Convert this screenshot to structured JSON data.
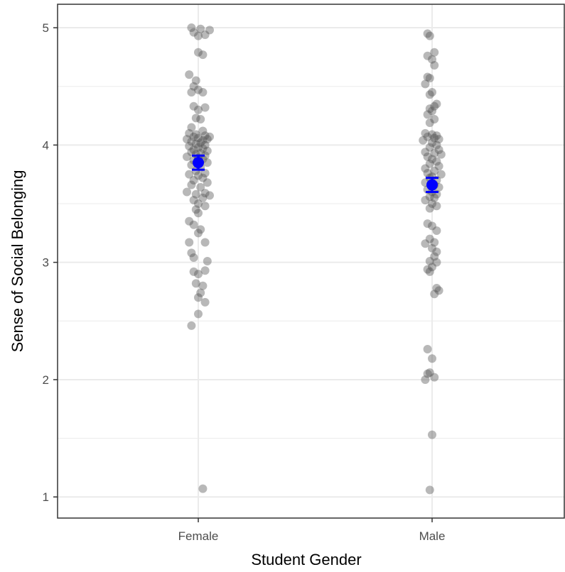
{
  "chart_data": {
    "type": "scatter",
    "title": "",
    "xlabel": "Student Gender",
    "ylabel": "Sense of Social Belonging",
    "categories": [
      "Female",
      "Male"
    ],
    "ylim": [
      0.82,
      5.2
    ],
    "yticks": [
      1,
      2,
      3,
      4,
      5
    ],
    "grid": true,
    "legend": "none",
    "colors": {
      "points": "#4d4d4d",
      "summary": "#0000ff",
      "grid": "#ebebeb",
      "panel_border": "#333333"
    },
    "points": {
      "Female": [
        {
          "jitter": -0.03,
          "y": 5.0
        },
        {
          "jitter": 0.01,
          "y": 4.99
        },
        {
          "jitter": 0.05,
          "y": 4.98
        },
        {
          "jitter": -0.02,
          "y": 4.96
        },
        {
          "jitter": 0.03,
          "y": 4.94
        },
        {
          "jitter": 0.0,
          "y": 4.93
        },
        {
          "jitter": 0.0,
          "y": 4.79
        },
        {
          "jitter": 0.02,
          "y": 4.77
        },
        {
          "jitter": -0.04,
          "y": 4.6
        },
        {
          "jitter": -0.01,
          "y": 4.55
        },
        {
          "jitter": -0.02,
          "y": 4.5
        },
        {
          "jitter": 0.0,
          "y": 4.47
        },
        {
          "jitter": -0.03,
          "y": 4.45
        },
        {
          "jitter": 0.02,
          "y": 4.45
        },
        {
          "jitter": -0.02,
          "y": 4.33
        },
        {
          "jitter": 0.03,
          "y": 4.32
        },
        {
          "jitter": 0.0,
          "y": 4.3
        },
        {
          "jitter": -0.01,
          "y": 4.23
        },
        {
          "jitter": 0.01,
          "y": 4.22
        },
        {
          "jitter": -0.03,
          "y": 4.15
        },
        {
          "jitter": 0.02,
          "y": 4.12
        },
        {
          "jitter": -0.04,
          "y": 4.1
        },
        {
          "jitter": -0.01,
          "y": 4.09
        },
        {
          "jitter": 0.03,
          "y": 4.08
        },
        {
          "jitter": 0.05,
          "y": 4.07
        },
        {
          "jitter": -0.02,
          "y": 4.07
        },
        {
          "jitter": 0.0,
          "y": 4.06
        },
        {
          "jitter": 0.04,
          "y": 4.05
        },
        {
          "jitter": -0.05,
          "y": 4.05
        },
        {
          "jitter": 0.02,
          "y": 4.04
        },
        {
          "jitter": -0.03,
          "y": 4.03
        },
        {
          "jitter": 0.01,
          "y": 4.02
        },
        {
          "jitter": -0.01,
          "y": 4.01
        },
        {
          "jitter": 0.03,
          "y": 4.0
        },
        {
          "jitter": -0.04,
          "y": 3.99
        },
        {
          "jitter": 0.0,
          "y": 3.98
        },
        {
          "jitter": 0.02,
          "y": 3.97
        },
        {
          "jitter": -0.02,
          "y": 3.96
        },
        {
          "jitter": 0.04,
          "y": 3.95
        },
        {
          "jitter": -0.03,
          "y": 3.94
        },
        {
          "jitter": 0.01,
          "y": 3.93
        },
        {
          "jitter": -0.01,
          "y": 3.92
        },
        {
          "jitter": 0.03,
          "y": 3.91
        },
        {
          "jitter": -0.05,
          "y": 3.9
        },
        {
          "jitter": 0.0,
          "y": 3.89
        },
        {
          "jitter": 0.02,
          "y": 3.88
        },
        {
          "jitter": -0.02,
          "y": 3.87
        },
        {
          "jitter": 0.04,
          "y": 3.85
        },
        {
          "jitter": -0.03,
          "y": 3.83
        },
        {
          "jitter": 0.01,
          "y": 3.81
        },
        {
          "jitter": -0.01,
          "y": 3.78
        },
        {
          "jitter": 0.03,
          "y": 3.76
        },
        {
          "jitter": -0.04,
          "y": 3.75
        },
        {
          "jitter": 0.0,
          "y": 3.74
        },
        {
          "jitter": 0.02,
          "y": 3.72
        },
        {
          "jitter": -0.02,
          "y": 3.7
        },
        {
          "jitter": 0.04,
          "y": 3.68
        },
        {
          "jitter": -0.03,
          "y": 3.66
        },
        {
          "jitter": 0.01,
          "y": 3.64
        },
        {
          "jitter": -0.05,
          "y": 3.6
        },
        {
          "jitter": 0.03,
          "y": 3.59
        },
        {
          "jitter": -0.01,
          "y": 3.58
        },
        {
          "jitter": 0.05,
          "y": 3.57
        },
        {
          "jitter": 0.02,
          "y": 3.55
        },
        {
          "jitter": -0.02,
          "y": 3.53
        },
        {
          "jitter": 0.0,
          "y": 3.5
        },
        {
          "jitter": 0.03,
          "y": 3.48
        },
        {
          "jitter": -0.01,
          "y": 3.45
        },
        {
          "jitter": 0.0,
          "y": 3.42
        },
        {
          "jitter": -0.04,
          "y": 3.35
        },
        {
          "jitter": -0.02,
          "y": 3.32
        },
        {
          "jitter": 0.01,
          "y": 3.28
        },
        {
          "jitter": 0.0,
          "y": 3.25
        },
        {
          "jitter": -0.04,
          "y": 3.17
        },
        {
          "jitter": 0.03,
          "y": 3.17
        },
        {
          "jitter": -0.03,
          "y": 3.08
        },
        {
          "jitter": -0.02,
          "y": 3.04
        },
        {
          "jitter": 0.04,
          "y": 3.01
        },
        {
          "jitter": 0.03,
          "y": 2.93
        },
        {
          "jitter": -0.02,
          "y": 2.92
        },
        {
          "jitter": 0.0,
          "y": 2.9
        },
        {
          "jitter": -0.01,
          "y": 2.82
        },
        {
          "jitter": 0.02,
          "y": 2.8
        },
        {
          "jitter": 0.01,
          "y": 2.74
        },
        {
          "jitter": 0.0,
          "y": 2.7
        },
        {
          "jitter": 0.03,
          "y": 2.66
        },
        {
          "jitter": 0.0,
          "y": 2.56
        },
        {
          "jitter": -0.03,
          "y": 2.46
        },
        {
          "jitter": 0.02,
          "y": 1.07
        }
      ],
      "Male": [
        {
          "jitter": -0.02,
          "y": 4.95
        },
        {
          "jitter": -0.01,
          "y": 4.93
        },
        {
          "jitter": 0.01,
          "y": 4.79
        },
        {
          "jitter": -0.02,
          "y": 4.76
        },
        {
          "jitter": 0.0,
          "y": 4.73
        },
        {
          "jitter": 0.01,
          "y": 4.68
        },
        {
          "jitter": -0.02,
          "y": 4.58
        },
        {
          "jitter": -0.01,
          "y": 4.57
        },
        {
          "jitter": -0.03,
          "y": 4.52
        },
        {
          "jitter": 0.0,
          "y": 4.45
        },
        {
          "jitter": -0.01,
          "y": 4.43
        },
        {
          "jitter": 0.02,
          "y": 4.35
        },
        {
          "jitter": 0.01,
          "y": 4.33
        },
        {
          "jitter": -0.01,
          "y": 4.31
        },
        {
          "jitter": 0.0,
          "y": 4.29
        },
        {
          "jitter": -0.02,
          "y": 4.26
        },
        {
          "jitter": 0.01,
          "y": 4.22
        },
        {
          "jitter": -0.01,
          "y": 4.19
        },
        {
          "jitter": -0.03,
          "y": 4.1
        },
        {
          "jitter": 0.0,
          "y": 4.09
        },
        {
          "jitter": 0.02,
          "y": 4.08
        },
        {
          "jitter": -0.02,
          "y": 4.07
        },
        {
          "jitter": 0.01,
          "y": 4.06
        },
        {
          "jitter": 0.03,
          "y": 4.05
        },
        {
          "jitter": -0.04,
          "y": 4.04
        },
        {
          "jitter": 0.0,
          "y": 4.02
        },
        {
          "jitter": 0.02,
          "y": 4.0
        },
        {
          "jitter": -0.01,
          "y": 3.98
        },
        {
          "jitter": 0.03,
          "y": 3.96
        },
        {
          "jitter": -0.03,
          "y": 3.94
        },
        {
          "jitter": 0.01,
          "y": 3.93
        },
        {
          "jitter": 0.04,
          "y": 3.92
        },
        {
          "jitter": -0.02,
          "y": 3.9
        },
        {
          "jitter": 0.0,
          "y": 3.88
        },
        {
          "jitter": 0.02,
          "y": 3.86
        },
        {
          "jitter": -0.01,
          "y": 3.84
        },
        {
          "jitter": 0.03,
          "y": 3.82
        },
        {
          "jitter": -0.03,
          "y": 3.8
        },
        {
          "jitter": 0.01,
          "y": 3.78
        },
        {
          "jitter": -0.02,
          "y": 3.76
        },
        {
          "jitter": 0.04,
          "y": 3.75
        },
        {
          "jitter": 0.0,
          "y": 3.73
        },
        {
          "jitter": -0.01,
          "y": 3.72
        },
        {
          "jitter": 0.02,
          "y": 3.7
        },
        {
          "jitter": -0.03,
          "y": 3.68
        },
        {
          "jitter": 0.01,
          "y": 3.66
        },
        {
          "jitter": 0.03,
          "y": 3.64
        },
        {
          "jitter": -0.02,
          "y": 3.62
        },
        {
          "jitter": 0.0,
          "y": 3.6
        },
        {
          "jitter": 0.02,
          "y": 3.58
        },
        {
          "jitter": -0.01,
          "y": 3.56
        },
        {
          "jitter": 0.01,
          "y": 3.55
        },
        {
          "jitter": -0.03,
          "y": 3.53
        },
        {
          "jitter": 0.0,
          "y": 3.5
        },
        {
          "jitter": 0.02,
          "y": 3.48
        },
        {
          "jitter": -0.01,
          "y": 3.46
        },
        {
          "jitter": -0.02,
          "y": 3.33
        },
        {
          "jitter": 0.0,
          "y": 3.31
        },
        {
          "jitter": 0.02,
          "y": 3.27
        },
        {
          "jitter": -0.01,
          "y": 3.2
        },
        {
          "jitter": 0.01,
          "y": 3.17
        },
        {
          "jitter": -0.03,
          "y": 3.16
        },
        {
          "jitter": 0.0,
          "y": 3.12
        },
        {
          "jitter": 0.02,
          "y": 3.09
        },
        {
          "jitter": 0.01,
          "y": 3.05
        },
        {
          "jitter": -0.01,
          "y": 3.01
        },
        {
          "jitter": 0.02,
          "y": 3.0
        },
        {
          "jitter": 0.0,
          "y": 2.96
        },
        {
          "jitter": -0.02,
          "y": 2.94
        },
        {
          "jitter": -0.01,
          "y": 2.92
        },
        {
          "jitter": 0.02,
          "y": 2.78
        },
        {
          "jitter": 0.03,
          "y": 2.76
        },
        {
          "jitter": 0.01,
          "y": 2.73
        },
        {
          "jitter": -0.02,
          "y": 2.26
        },
        {
          "jitter": 0.0,
          "y": 2.18
        },
        {
          "jitter": -0.01,
          "y": 2.06
        },
        {
          "jitter": -0.02,
          "y": 2.05
        },
        {
          "jitter": 0.01,
          "y": 2.02
        },
        {
          "jitter": -0.03,
          "y": 2.0
        },
        {
          "jitter": 0.0,
          "y": 1.53
        },
        {
          "jitter": -0.01,
          "y": 1.06
        }
      ]
    },
    "summary": [
      {
        "category": "Female",
        "mean": 3.85,
        "lower": 3.79,
        "upper": 3.91
      },
      {
        "category": "Male",
        "mean": 3.66,
        "lower": 3.6,
        "upper": 3.72
      }
    ]
  }
}
